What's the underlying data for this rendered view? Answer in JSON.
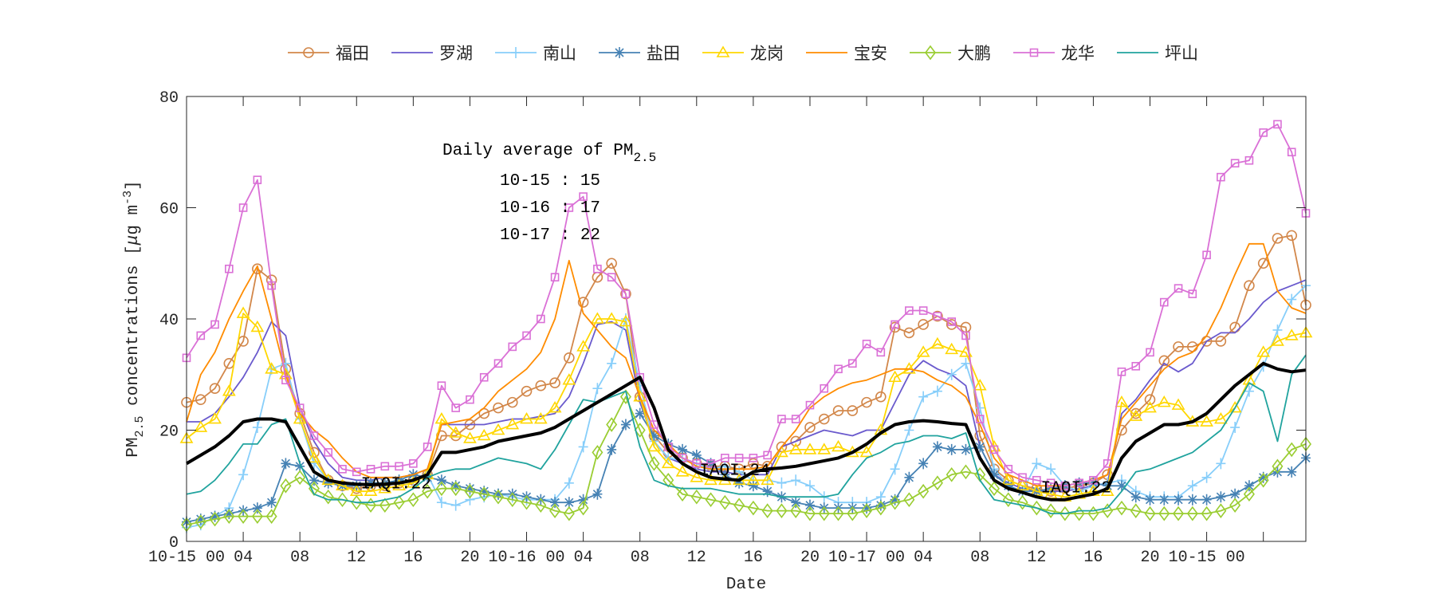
{
  "chart_data": {
    "type": "line",
    "title": "",
    "xlabel": "Date",
    "ylabel": "PM2.5 concentrations [μg m^-3]",
    "ylabel_parts": {
      "main": "PM",
      "sub": "2.5",
      "rest": " concentrations [",
      "mu": "μ",
      "unit": "g m",
      "sup": "-3",
      "close": "]"
    },
    "x_unit": "hour since 10-15 00",
    "xlim": [
      0,
      79
    ],
    "ylim": [
      0,
      80
    ],
    "yticks": [
      0,
      20,
      40,
      60,
      80
    ],
    "xticks": [
      {
        "x": 0,
        "label": "10-15 00"
      },
      {
        "x": 4,
        "label": "04"
      },
      {
        "x": 8,
        "label": "08"
      },
      {
        "x": 12,
        "label": "12"
      },
      {
        "x": 16,
        "label": "16"
      },
      {
        "x": 20,
        "label": "20"
      },
      {
        "x": 24,
        "label": "10-16 00"
      },
      {
        "x": 28,
        "label": "04"
      },
      {
        "x": 32,
        "label": "08"
      },
      {
        "x": 36,
        "label": "12"
      },
      {
        "x": 40,
        "label": "16"
      },
      {
        "x": 44,
        "label": "20"
      },
      {
        "x": 48,
        "label": "10-17 00"
      },
      {
        "x": 52,
        "label": "04"
      },
      {
        "x": 56,
        "label": "08"
      },
      {
        "x": 60,
        "label": "12"
      },
      {
        "x": 64,
        "label": "16"
      },
      {
        "x": 68,
        "label": "20"
      },
      {
        "x": 72,
        "label": "10-15 00"
      },
      {
        "x": 76,
        "label": ""
      }
    ],
    "grid": false,
    "legend_position": "top-center, horizontal",
    "series": [
      {
        "name": "福田",
        "color": "#d2874a",
        "marker": "circle",
        "values": [
          25,
          25.5,
          27.5,
          32,
          36,
          49,
          47,
          31,
          23,
          16,
          11,
          10,
          9.5,
          10,
          10,
          10.5,
          11,
          12,
          19,
          19,
          21,
          23,
          24,
          25,
          27,
          28,
          28.5,
          33,
          43,
          47.5,
          50,
          44.5,
          26,
          19,
          16,
          15,
          14,
          13.5,
          13.5,
          13,
          14,
          13.5,
          17,
          18,
          20.5,
          22,
          23.5,
          23.5,
          25,
          26,
          38.5,
          37.5,
          39,
          40.5,
          39,
          38.5,
          19,
          13,
          11,
          10,
          9.5,
          9,
          9.5,
          10,
          10.5,
          12,
          20,
          23,
          25.5,
          32.5,
          35,
          35,
          36,
          36,
          38.5,
          46,
          50,
          54.5,
          55,
          42.5
        ]
      },
      {
        "name": "罗湖",
        "color": "#6a5acd",
        "marker": "none",
        "values": [
          21.5,
          21.5,
          23,
          26,
          29.5,
          34,
          39.5,
          37,
          24,
          18,
          14,
          11.5,
          11,
          11,
          11.5,
          11.5,
          12,
          13,
          21,
          21,
          21,
          21,
          21.5,
          22,
          22,
          22.5,
          23,
          26,
          32,
          39,
          39.5,
          38,
          25,
          18,
          15,
          14,
          13,
          12.5,
          12.5,
          12,
          12,
          12,
          17,
          18,
          19,
          20,
          19.5,
          19,
          20,
          20,
          25,
          30,
          32.5,
          31,
          30,
          28,
          17,
          12,
          10.5,
          9.5,
          9,
          9,
          9,
          9.5,
          10,
          10.5,
          23,
          25.5,
          29,
          32,
          30.5,
          32,
          36,
          37.5,
          37.5,
          40,
          43,
          45,
          46,
          47
        ]
      },
      {
        "name": "南山",
        "color": "#87cefa",
        "marker": "plus",
        "values": [
          2.5,
          3,
          4.5,
          6,
          12,
          20.5,
          31,
          32,
          22,
          14,
          11,
          10,
          10,
          10.5,
          10.5,
          11,
          11,
          12,
          7,
          6.5,
          7.5,
          8,
          8.5,
          8,
          7.5,
          7.5,
          7.5,
          10.5,
          17,
          27.5,
          32,
          40,
          28,
          18,
          15,
          14.5,
          14,
          13,
          13.5,
          12.5,
          11,
          11,
          10.5,
          11,
          10,
          8,
          7,
          7,
          7,
          8,
          13,
          20,
          26,
          27,
          30,
          32,
          24,
          13,
          10,
          9,
          14,
          13,
          10,
          9,
          10,
          10.5,
          11,
          9,
          8,
          8,
          8,
          10,
          11.5,
          14,
          20.5,
          27,
          31.5,
          38,
          43.5,
          46
        ]
      },
      {
        "name": "盐田",
        "color": "#4682b4",
        "marker": "asterisk",
        "values": [
          3.5,
          4,
          4.5,
          5,
          5.5,
          6,
          7,
          14,
          13.5,
          11,
          10.5,
          10,
          10,
          10.5,
          10.5,
          11,
          12,
          11.5,
          11,
          10,
          9.5,
          9,
          8.5,
          8.5,
          8,
          7.5,
          7,
          7,
          7.5,
          8.5,
          16.5,
          21,
          23,
          19,
          17.5,
          16.5,
          15.5,
          14,
          12,
          10.5,
          10,
          9,
          8,
          7,
          6.5,
          6,
          6,
          6,
          6,
          6.5,
          7.5,
          11.5,
          14,
          17,
          16.5,
          16.5,
          17,
          12,
          10,
          9,
          9,
          9.5,
          10,
          10.5,
          10.5,
          10,
          10,
          8,
          7.5,
          7.5,
          7.5,
          7.5,
          7.5,
          8,
          8.5,
          10,
          11.5,
          12.5,
          12.5,
          15
        ]
      },
      {
        "name": "龙岗",
        "color": "#ffd700",
        "marker": "triangle",
        "values": [
          18.5,
          20.5,
          22,
          27,
          41,
          38.5,
          31,
          30,
          22,
          15,
          11,
          10,
          9,
          9,
          9.5,
          10,
          10.5,
          12,
          22,
          19.5,
          18.5,
          19,
          20,
          21,
          22,
          22,
          24,
          29,
          35,
          40,
          40,
          39.5,
          26,
          17,
          14,
          12.5,
          11.5,
          11,
          11,
          11,
          11,
          11,
          16,
          16.5,
          16.5,
          16.5,
          17,
          16,
          16,
          20,
          29.5,
          31,
          34,
          35.5,
          34.5,
          34,
          28,
          17,
          11,
          10,
          9,
          8.5,
          8,
          8.5,
          9,
          9,
          25,
          22.5,
          24,
          25,
          24.5,
          21.5,
          21.5,
          22,
          24,
          29,
          34,
          36,
          37,
          37.5
        ]
      },
      {
        "name": "宝安",
        "color": "#ff8c00",
        "marker": "none",
        "values": [
          21.5,
          30,
          34,
          40,
          45,
          49.5,
          40,
          30,
          23,
          20,
          18,
          15,
          12.5,
          11.5,
          11.5,
          11.5,
          12,
          13,
          21,
          21.5,
          22,
          24,
          27,
          29,
          31,
          34,
          40,
          50.5,
          41,
          38,
          35,
          33,
          26,
          20,
          17.5,
          15,
          13.5,
          13,
          13,
          13,
          13,
          13.5,
          17,
          20,
          24,
          26,
          27.5,
          28.5,
          29,
          30,
          31,
          31,
          30.5,
          29,
          28,
          26,
          21,
          15,
          12,
          11,
          10,
          10,
          10,
          10.5,
          11,
          12,
          22,
          25,
          28,
          31,
          33,
          34,
          37,
          42,
          48,
          53.5,
          53.5,
          45,
          42,
          41
        ]
      },
      {
        "name": "大鹏",
        "color": "#9acd32",
        "marker": "diamond",
        "values": [
          3,
          3.5,
          4,
          4.5,
          4.5,
          4.5,
          4.5,
          10,
          11.5,
          9.5,
          8,
          7.5,
          7,
          6.5,
          6.5,
          7,
          7.5,
          9,
          9.5,
          9.5,
          9,
          8.5,
          8,
          7.5,
          7,
          6.5,
          5.5,
          5,
          6,
          16,
          21,
          26,
          20,
          14,
          11,
          8.5,
          8,
          7.5,
          7,
          6.5,
          6,
          5.5,
          5.5,
          5.5,
          5,
          5,
          5,
          5,
          5.5,
          6,
          7,
          7.5,
          9,
          10.5,
          12,
          12.5,
          12,
          9.5,
          7.5,
          7,
          6,
          5.5,
          5,
          5,
          5,
          5.5,
          6,
          5.5,
          5,
          5,
          5,
          5,
          5,
          5.5,
          6.5,
          8.5,
          11,
          13.5,
          16.5,
          17.5
        ]
      },
      {
        "name": "龙华",
        "color": "#da70d6",
        "marker": "square",
        "values": [
          33,
          37,
          39,
          49,
          60,
          65,
          46,
          29,
          24,
          19,
          16,
          13,
          12.5,
          13,
          13.5,
          13.5,
          14,
          17,
          28,
          24,
          25.5,
          29.5,
          32,
          35,
          37,
          40,
          47.5,
          60,
          62,
          49,
          47.5,
          44.5,
          29.5,
          21,
          17,
          15,
          14,
          14,
          15,
          15,
          15,
          15.5,
          22,
          22,
          24.5,
          27.5,
          31,
          32,
          35.5,
          34,
          39,
          41.5,
          41.5,
          40.5,
          39.5,
          37,
          22,
          16.5,
          13,
          11.5,
          11,
          10.5,
          10,
          10.5,
          11,
          14,
          30.5,
          31.5,
          34,
          43,
          45.5,
          44.5,
          51.5,
          65.5,
          68,
          68.5,
          73.5,
          75,
          70,
          59
        ]
      },
      {
        "name": "坪山",
        "color": "#20a39e",
        "marker": "none",
        "values": [
          8.5,
          9,
          11,
          14,
          17.5,
          17.5,
          21,
          22,
          14,
          8.5,
          7.5,
          7.5,
          7,
          7,
          7.5,
          8,
          9.5,
          11.5,
          12.5,
          13,
          13,
          14,
          15,
          14.5,
          14,
          13,
          16.5,
          21,
          25.5,
          25,
          26,
          27,
          17,
          11,
          10,
          9.5,
          9.5,
          9.5,
          9,
          8.5,
          8.5,
          8.5,
          8,
          8,
          8,
          8,
          8.5,
          12,
          15,
          16,
          17.5,
          18,
          19,
          19,
          18.5,
          19.5,
          11,
          7.5,
          7,
          6.5,
          6,
          5,
          5,
          5.5,
          5.5,
          6,
          9,
          12.5,
          13,
          14,
          15,
          16,
          18,
          20,
          24,
          28.5,
          27,
          18,
          30,
          33.5
        ]
      },
      {
        "name": "",
        "color": "#000000",
        "marker": "none",
        "bold": true,
        "values": [
          14,
          15.5,
          17,
          19,
          21.5,
          22,
          22,
          21.5,
          17,
          12.5,
          11,
          10.5,
          10.3,
          10.2,
          10.3,
          10.5,
          11,
          12,
          16,
          16,
          16.5,
          17,
          18,
          18.5,
          19,
          19.5,
          20.5,
          22,
          23.5,
          25,
          26.5,
          28,
          29.5,
          24,
          16.5,
          14,
          12.5,
          11.5,
          11.2,
          11,
          12.5,
          13,
          13.2,
          13.5,
          14,
          14.5,
          15,
          16,
          17.5,
          19.5,
          21,
          21.5,
          21.7,
          21.5,
          21.2,
          21,
          15,
          11,
          9.5,
          8.8,
          8,
          7.5,
          7.5,
          8,
          8.5,
          9.5,
          15,
          18,
          19.5,
          21,
          21,
          21.5,
          23,
          25.5,
          28,
          30,
          32,
          31,
          30.5,
          30.8
        ]
      }
    ],
    "annotations": [
      {
        "text": "IAQI:22",
        "x": 12.3,
        "y": 9.5
      },
      {
        "text": "IAQI:24",
        "x": 36.2,
        "y": 12
      },
      {
        "text": "IAQI:22",
        "x": 60.3,
        "y": 8.8
      }
    ],
    "daily_average": {
      "title": "Daily average of PM",
      "title_sub": "2.5",
      "rows": [
        "10-15 : 15",
        "10-16 : 17",
        "10-17 : 22"
      ]
    }
  }
}
